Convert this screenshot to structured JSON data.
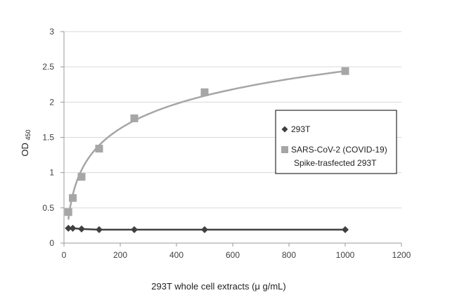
{
  "chart_data": {
    "type": "scatter",
    "title": "",
    "xlabel": "293T whole cell extracts (μ g/mL)",
    "ylabel": "OD",
    "ylabel_sub": "450",
    "xlim": [
      0,
      1200
    ],
    "ylim": [
      0,
      3
    ],
    "xticks": [
      "0",
      "200",
      "400",
      "600",
      "800",
      "1000",
      "1200"
    ],
    "yticks": [
      "0",
      "0.5",
      "1",
      "1.5",
      "2",
      "2.5",
      "3"
    ],
    "grid": "horizontal",
    "legend_position": "right",
    "series": [
      {
        "name": "293T",
        "marker": "diamond",
        "color": "#404040",
        "trend_color": "#404040",
        "points": [
          {
            "x": 15.6,
            "y": 0.21
          },
          {
            "x": 31.25,
            "y": 0.21
          },
          {
            "x": 62.5,
            "y": 0.2
          },
          {
            "x": 125,
            "y": 0.19
          },
          {
            "x": 250,
            "y": 0.19
          },
          {
            "x": 500,
            "y": 0.19
          },
          {
            "x": 1000,
            "y": 0.19
          }
        ]
      },
      {
        "name_lines": [
          "SARS-CoV-2 (COVID-19)",
          "Spike-trasfected 293T"
        ],
        "marker": "square",
        "color": "#a6a6a6",
        "trend_color": "#a6a6a6",
        "points": [
          {
            "x": 15.6,
            "y": 0.44
          },
          {
            "x": 31.25,
            "y": 0.64
          },
          {
            "x": 62.5,
            "y": 0.94
          },
          {
            "x": 125,
            "y": 1.34
          },
          {
            "x": 250,
            "y": 1.77
          },
          {
            "x": 500,
            "y": 2.14
          },
          {
            "x": 1000,
            "y": 2.44
          }
        ]
      }
    ]
  }
}
